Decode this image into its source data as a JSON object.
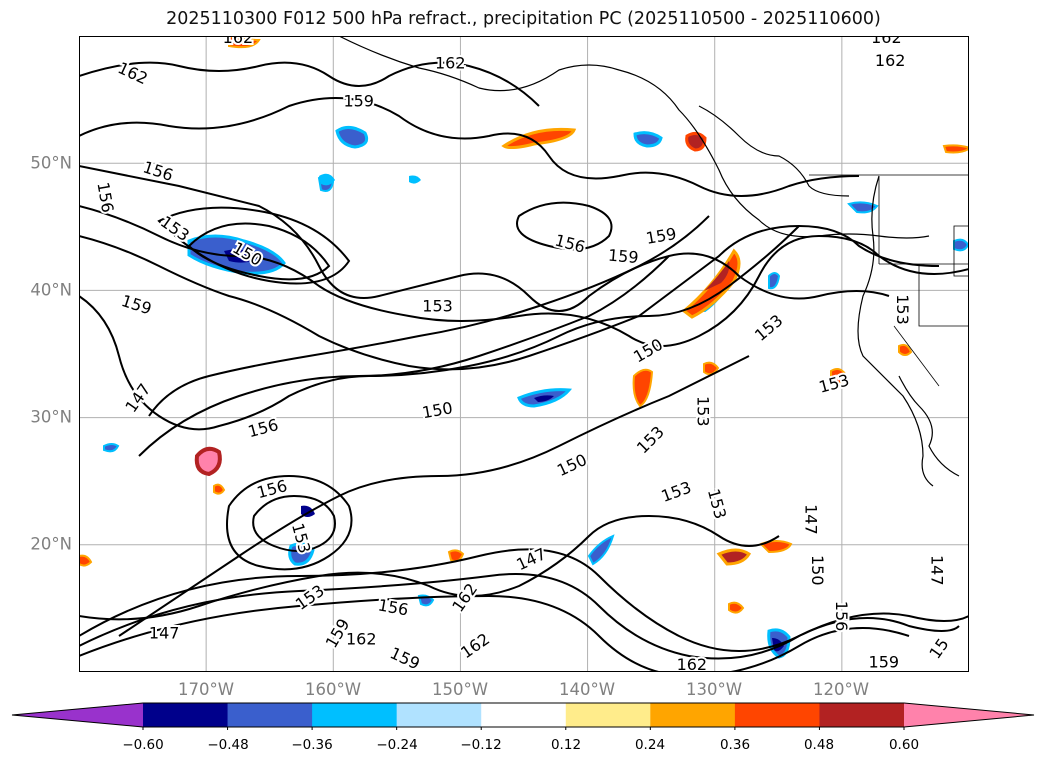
{
  "title": "2025110300 F012 500 hPa refract., precipitation PC (2025110500 - 2025110600)",
  "axes": {
    "lat_labels": [
      "50°N",
      "40°N",
      "30°N",
      "20°N"
    ],
    "lon_labels": [
      "170°W",
      "160°W",
      "150°W",
      "140°W",
      "130°W",
      "120°W"
    ]
  },
  "colorbar": {
    "colors": [
      "#9932CC",
      "#00008B",
      "#3A5FCD",
      "#00BFFF",
      "#B0E2FF",
      "#FFFFFF",
      "#FFEC8B",
      "#FFA500",
      "#FF4500",
      "#B22222",
      "#FF82AB"
    ],
    "ticks": [
      "−0.60",
      "−0.48",
      "−0.36",
      "−0.24",
      "−0.12",
      "0.12",
      "0.24",
      "0.36",
      "0.48",
      "0.60"
    ]
  },
  "contour_labels": [
    {
      "text": "162",
      "lon": -167.5,
      "lat": 59.8,
      "angle": 0
    },
    {
      "text": "162",
      "lon": -150.8,
      "lat": 57.8,
      "angle": 0
    },
    {
      "text": "162",
      "lon": -175.8,
      "lat": 57.0,
      "angle": 25
    },
    {
      "text": "162",
      "lon": -116.5,
      "lat": 59.8,
      "angle": 0
    },
    {
      "text": "162",
      "lon": -116.2,
      "lat": 58.0,
      "angle": 0
    },
    {
      "text": "159",
      "lon": -158.0,
      "lat": 54.8,
      "angle": 0
    },
    {
      "text": "156",
      "lon": -173.8,
      "lat": 49.3,
      "angle": 18
    },
    {
      "text": "156",
      "lon": -178.0,
      "lat": 47.3,
      "angle": 80
    },
    {
      "text": "153",
      "lon": -172.5,
      "lat": 44.8,
      "angle": 35
    },
    {
      "text": "150",
      "lon": -166.8,
      "lat": 42.8,
      "angle": 30
    },
    {
      "text": "159",
      "lon": -175.5,
      "lat": 38.8,
      "angle": 18
    },
    {
      "text": "156",
      "lon": -141.4,
      "lat": 43.6,
      "angle": 15
    },
    {
      "text": "159",
      "lon": -137.2,
      "lat": 42.6,
      "angle": 5
    },
    {
      "text": "159",
      "lon": -134.2,
      "lat": 44.2,
      "angle": -10
    },
    {
      "text": "153",
      "lon": -151.8,
      "lat": 38.7,
      "angle": 0
    },
    {
      "text": "150",
      "lon": -135.2,
      "lat": 35.2,
      "angle": -30
    },
    {
      "text": "153",
      "lon": -125.7,
      "lat": 37.0,
      "angle": -40
    },
    {
      "text": "153",
      "lon": -115.3,
      "lat": 38.5,
      "angle": 90
    },
    {
      "text": "147",
      "lon": -175.3,
      "lat": 31.5,
      "angle": -55
    },
    {
      "text": "156",
      "lon": -165.5,
      "lat": 29.1,
      "angle": -15
    },
    {
      "text": "150",
      "lon": -151.8,
      "lat": 30.5,
      "angle": -10
    },
    {
      "text": "153",
      "lon": -131.0,
      "lat": 30.5,
      "angle": 90
    },
    {
      "text": "153",
      "lon": -135.0,
      "lat": 28.2,
      "angle": -45
    },
    {
      "text": "153",
      "lon": -120.6,
      "lat": 32.6,
      "angle": -15
    },
    {
      "text": "150",
      "lon": -141.2,
      "lat": 26.2,
      "angle": -25
    },
    {
      "text": "153",
      "lon": -133.0,
      "lat": 24.1,
      "angle": -20
    },
    {
      "text": "153",
      "lon": -129.9,
      "lat": 23.2,
      "angle": 75
    },
    {
      "text": "147",
      "lon": -122.5,
      "lat": 22.0,
      "angle": 90
    },
    {
      "text": "156",
      "lon": -164.8,
      "lat": 24.3,
      "angle": -15
    },
    {
      "text": "153",
      "lon": -162.6,
      "lat": 20.5,
      "angle": 75
    },
    {
      "text": "150",
      "lon": -122.0,
      "lat": 18.0,
      "angle": 90
    },
    {
      "text": "147",
      "lon": -112.6,
      "lat": 18.0,
      "angle": 90
    },
    {
      "text": "147",
      "lon": -144.4,
      "lat": 18.8,
      "angle": -25
    },
    {
      "text": "153",
      "lon": -161.8,
      "lat": 15.8,
      "angle": -35
    },
    {
      "text": "156",
      "lon": -155.3,
      "lat": 15.0,
      "angle": 10
    },
    {
      "text": "162",
      "lon": -149.6,
      "lat": 15.8,
      "angle": -55
    },
    {
      "text": "159",
      "lon": -159.6,
      "lat": 13.0,
      "angle": -60
    },
    {
      "text": "162",
      "lon": -157.8,
      "lat": 12.5,
      "angle": 0
    },
    {
      "text": "162",
      "lon": -148.8,
      "lat": 12.0,
      "angle": -35
    },
    {
      "text": "159",
      "lon": -154.4,
      "lat": 11.0,
      "angle": 25
    },
    {
      "text": "147",
      "lon": -173.3,
      "lat": 13.0,
      "angle": 0
    },
    {
      "text": "162",
      "lon": -131.8,
      "lat": 10.5,
      "angle": 0
    },
    {
      "text": "159",
      "lon": -116.7,
      "lat": 10.7,
      "angle": 0
    },
    {
      "text": "156",
      "lon": -120.1,
      "lat": 14.4,
      "angle": 90
    },
    {
      "text": "15",
      "lon": -112.3,
      "lat": 11.8,
      "angle": -55
    }
  ]
}
